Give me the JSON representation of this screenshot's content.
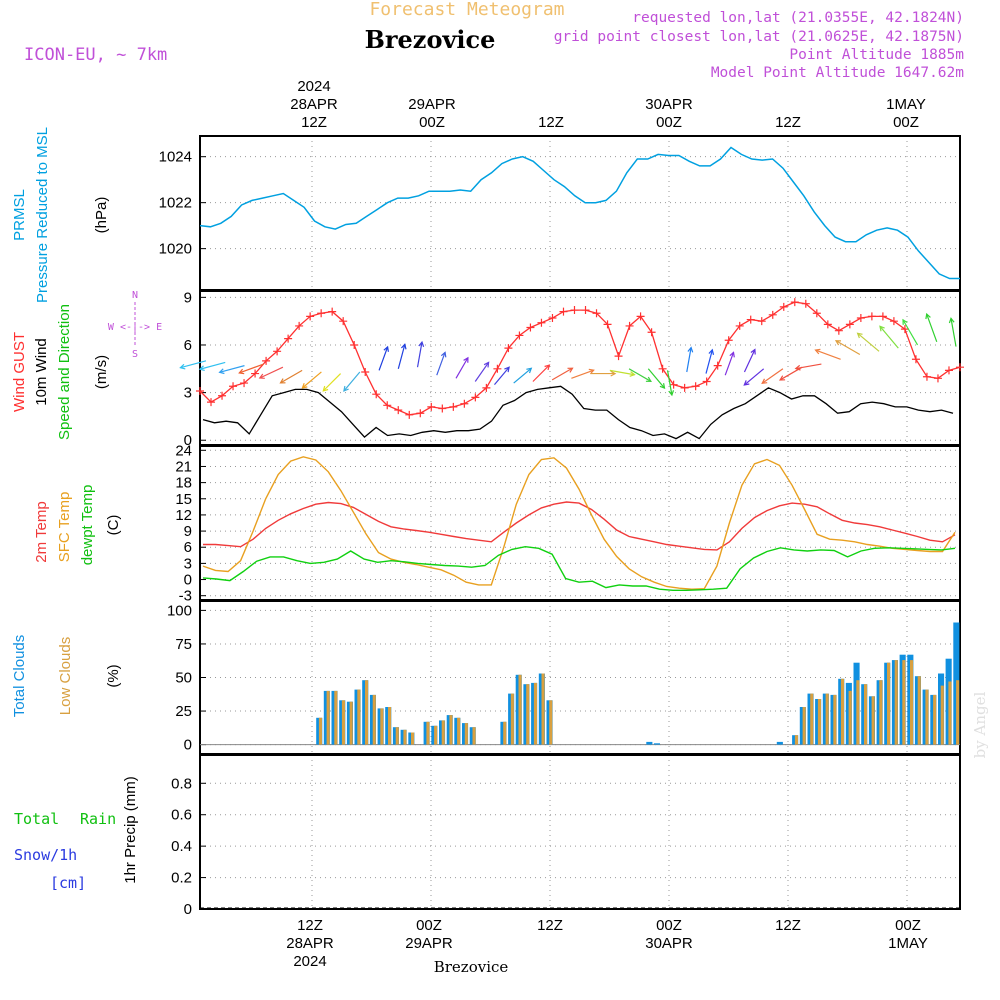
{
  "header": {
    "title": "Forecast Meteogram",
    "location": "Brezovice",
    "model": "ICON-EU, ~ 7km",
    "requested": "requested lon,lat (21.0355E, 42.1824N)",
    "gridpoint": "grid point closest lon,lat (21.0625E, 42.1875N)",
    "point_alt": "Point Altitude 1885m",
    "model_alt": "Model Point Altitude 1647.62m",
    "watermark": "by Angel",
    "footer": "Brezovice"
  },
  "top_axis": [
    {
      "l1": "2024",
      "l2": "28APR",
      "l3": "12Z"
    },
    {
      "l1": "",
      "l2": "29APR",
      "l3": "00Z"
    },
    {
      "l1": "",
      "l2": "",
      "l3": "12Z"
    },
    {
      "l1": "",
      "l2": "30APR",
      "l3": "00Z"
    },
    {
      "l1": "",
      "l2": "",
      "l3": "12Z"
    },
    {
      "l1": "",
      "l2": "1MAY",
      "l3": "00Z"
    }
  ],
  "bottom_axis": [
    {
      "l1": "12Z",
      "l2": "28APR",
      "l3": "2024"
    },
    {
      "l1": "00Z",
      "l2": "29APR",
      "l3": ""
    },
    {
      "l1": "12Z",
      "l2": "",
      "l3": ""
    },
    {
      "l1": "00Z",
      "l2": "30APR",
      "l3": ""
    },
    {
      "l1": "12Z",
      "l2": "",
      "l3": ""
    },
    {
      "l1": "00Z",
      "l2": "1MAY",
      "l3": ""
    }
  ],
  "panel_labels": {
    "prmsl": [
      "PRMSL",
      "Pressure Reduced to MSL",
      "(hPa)"
    ],
    "wind": [
      "Wind GUST",
      "10m Wind",
      "Speed and Direction",
      "(m/s)"
    ],
    "compass": [
      "N",
      "W <-|-> E",
      "S"
    ],
    "temp": [
      "2m Temp",
      "SFC Temp",
      "dewpt Temp",
      "(C)"
    ],
    "clouds": [
      "Total Clouds",
      "Low Clouds",
      "(%)"
    ],
    "precip": [
      "Total",
      "Rain",
      "Snow/1h",
      "[cm]",
      "1hr Precip (mm)"
    ]
  },
  "colors": {
    "pressure": "#00a0e0",
    "gust": "#ff3030",
    "wind": "#000000",
    "temp2m": "#f03a3a",
    "sfc": "#e8a020",
    "dew": "#10d010",
    "total_cloud": "#1090e0",
    "low_cloud": "#d8a040",
    "label_purple": "#c050d8",
    "title_orange": "#f0c070"
  },
  "chart_data": [
    {
      "type": "line",
      "name": "pressure",
      "title": "PRMSL",
      "ylabel": "(hPa)",
      "hours_start": 0,
      "hours_step": 1,
      "ylim": [
        1018.2,
        1024.9
      ],
      "yticks": [
        1020,
        1022,
        1024
      ],
      "values": [
        1021.0,
        1020.95,
        1021.1,
        1021.4,
        1021.9,
        1022.1,
        1022.2,
        1022.3,
        1022.4,
        1022.1,
        1021.8,
        1021.2,
        1020.95,
        1020.85,
        1021.05,
        1021.1,
        1021.4,
        1021.7,
        1022.0,
        1022.2,
        1022.2,
        1022.3,
        1022.5,
        1022.5,
        1022.5,
        1022.55,
        1022.5,
        1023.0,
        1023.3,
        1023.7,
        1023.9,
        1024.0,
        1023.8,
        1023.4,
        1023.0,
        1022.7,
        1022.3,
        1022.0,
        1022.0,
        1022.1,
        1022.5,
        1023.3,
        1023.9,
        1023.9,
        1024.1,
        1024.05,
        1024.05,
        1023.8,
        1023.6,
        1023.6,
        1023.9,
        1024.4,
        1024.1,
        1023.9,
        1023.85,
        1023.9,
        1023.5,
        1022.9,
        1022.3,
        1021.6,
        1021.0,
        1020.5,
        1020.3,
        1020.3,
        1020.6,
        1020.8,
        1020.9,
        1020.8,
        1020.5,
        1019.9,
        1019.4,
        1018.9,
        1018.7,
        1018.7
      ],
      "xlabels": [
        "12Z",
        "00Z",
        "12Z",
        "00Z",
        "12Z",
        "00Z"
      ]
    },
    {
      "type": "line",
      "name": "wind",
      "title": "Wind GUST / 10m Wind",
      "ylabel": "(m/s)",
      "ylim": [
        -0.3,
        9.4
      ],
      "yticks": [
        0,
        3,
        6,
        9
      ],
      "series": [
        {
          "name": "Wind GUST",
          "values": [
            3.1,
            2.4,
            2.8,
            3.4,
            3.6,
            4.2,
            5.0,
            5.6,
            6.4,
            7.2,
            7.8,
            8.0,
            8.1,
            7.5,
            6.0,
            4.3,
            2.9,
            2.2,
            1.9,
            1.6,
            1.7,
            2.1,
            2.0,
            2.1,
            2.3,
            2.7,
            3.3,
            4.5,
            5.8,
            6.6,
            7.1,
            7.4,
            7.7,
            8.1,
            8.2,
            8.2,
            8.0,
            7.3,
            5.3,
            7.2,
            7.8,
            6.8,
            4.5,
            3.5,
            3.3,
            3.4,
            3.7,
            4.7,
            6.3,
            7.2,
            7.6,
            7.5,
            7.9,
            8.4,
            8.7,
            8.6,
            8.0,
            7.3,
            6.9,
            7.3,
            7.7,
            7.8,
            7.8,
            7.5,
            7.0,
            5.1,
            4.0,
            3.9,
            4.4,
            4.6
          ]
        },
        {
          "name": "10m Wind",
          "values": [
            1.3,
            1.1,
            1.2,
            1.1,
            0.4,
            1.6,
            2.8,
            3.0,
            3.2,
            3.2,
            3.0,
            2.4,
            1.8,
            1.0,
            0.2,
            0.8,
            0.3,
            0.4,
            0.3,
            0.5,
            0.6,
            0.5,
            0.6,
            0.6,
            0.7,
            1.2,
            2.2,
            2.5,
            3.0,
            3.2,
            3.3,
            3.4,
            2.9,
            2.0,
            1.9,
            1.9,
            1.3,
            0.8,
            0.6,
            0.3,
            0.4,
            0.1,
            0.5,
            0.1,
            1.0,
            1.6,
            2.0,
            2.3,
            2.8,
            3.3,
            3.0,
            2.6,
            2.8,
            2.8,
            2.3,
            1.7,
            1.8,
            2.3,
            2.4,
            2.3,
            2.1,
            2.1,
            1.9,
            1.8,
            1.9,
            1.7
          ]
        }
      ],
      "arrows": {
        "positions_step": 2.2,
        "speeds": [
          5.0,
          4.9,
          4.7,
          4.8,
          4.6,
          4.4,
          4.3,
          4.2,
          4.3,
          4.4,
          4.5,
          4.6,
          4.1,
          3.9,
          3.7,
          3.5,
          3.6,
          3.7,
          3.8,
          3.9,
          4.2,
          4.4,
          4.5,
          4.5,
          4.4,
          4.3,
          4.2,
          4.1,
          4.3,
          4.5,
          4.5,
          4.6,
          4.8,
          5.1,
          5.4,
          5.6,
          5.8,
          6.0,
          6.2,
          5.9
        ],
        "dirs": [
          255,
          255,
          255,
          250,
          245,
          240,
          230,
          225,
          220,
          20,
          15,
          10,
          20,
          30,
          35,
          40,
          50,
          45,
          60,
          70,
          90,
          100,
          120,
          140,
          170,
          10,
          15,
          20,
          25,
          230,
          235,
          240,
          260,
          290,
          300,
          310,
          320,
          330,
          340,
          350
        ]
      }
    },
    {
      "type": "line",
      "name": "temperature",
      "title": "Temperatures",
      "ylabel": "(C)",
      "ylim": [
        -3.8,
        24.8
      ],
      "yticks": [
        -3,
        0,
        3,
        6,
        9,
        12,
        15,
        18,
        21,
        24
      ],
      "series": [
        {
          "name": "2m Temp",
          "values": [
            6.5,
            6.5,
            6.3,
            6.1,
            7.5,
            9.5,
            11,
            12.2,
            13.2,
            14,
            14.3,
            14.1,
            13.4,
            12.1,
            10.8,
            9.8,
            9.4,
            9.1,
            8.8,
            8.4,
            8.0,
            7.6,
            7.3,
            7.0,
            8.8,
            10.5,
            12,
            13.3,
            14,
            14.4,
            14.2,
            13,
            11.2,
            9.2,
            8,
            7.5,
            7.0,
            6.5,
            6.2,
            5.9,
            5.6,
            5.5,
            7.0,
            9.5,
            11.5,
            12.8,
            13.7,
            14.2,
            14.0,
            13.5,
            12.2,
            11,
            10.5,
            10.2,
            9.8,
            9.2,
            8.6,
            8.0,
            7.3,
            7.0,
            8.3
          ]
        },
        {
          "name": "SFC Temp",
          "values": [
            2.5,
            1.7,
            1.5,
            3.5,
            9,
            15,
            19.5,
            22,
            22.8,
            22.2,
            20,
            16.5,
            12.5,
            8.5,
            5,
            3.8,
            3.2,
            2.8,
            2.3,
            1.8,
            0.8,
            -0.5,
            -1.0,
            -1.0,
            6,
            14,
            19.5,
            22.3,
            22.6,
            20.7,
            16.8,
            12.0,
            7.5,
            4.3,
            2.0,
            0.5,
            -0.5,
            -1.3,
            -1.6,
            -1.8,
            -1.7,
            2.5,
            10.5,
            17.5,
            21.5,
            22.3,
            21.2,
            17.5,
            13,
            8.4,
            7.5,
            7.3,
            7.0,
            6.5,
            6.2,
            5.8,
            5.6,
            5.4,
            5.2,
            5.2,
            8.8
          ]
        },
        {
          "name": "dewpt Temp",
          "values": [
            0.3,
            0.1,
            -0.2,
            1.5,
            3.4,
            4.2,
            4.2,
            3.5,
            3.0,
            3.2,
            3.8,
            5.3,
            3.8,
            3.2,
            3.5,
            3.3,
            3.0,
            2.8,
            2.6,
            2.5,
            2.3,
            2.6,
            4.5,
            5.6,
            6.1,
            5.8,
            4.7,
            0.2,
            -0.5,
            -0.3,
            -1.5,
            -1.0,
            -1.2,
            -1.2,
            -1.8,
            -2.0,
            -2.0,
            -1.9,
            -1.8,
            -1.6,
            2.0,
            4.0,
            5.2,
            5.9,
            5.5,
            5.3,
            5.5,
            5.4,
            4.2,
            5.3,
            5.8,
            5.9,
            5.8,
            5.7,
            5.6,
            5.5,
            5.8
          ]
        }
      ]
    },
    {
      "type": "bar",
      "name": "clouds",
      "title": "Clouds",
      "ylabel": "(%)",
      "ylim": [
        -7,
        107
      ],
      "yticks": [
        0,
        25,
        50,
        75,
        100
      ],
      "series": [
        {
          "name": "Total Clouds",
          "values": [
            0,
            0,
            0,
            0,
            0,
            0,
            0,
            0,
            0,
            0,
            0,
            0,
            0,
            0,
            0,
            20,
            40,
            40,
            33,
            32,
            41,
            48,
            37,
            27,
            28,
            13,
            11,
            9,
            0,
            17,
            14,
            18,
            22,
            20,
            16,
            13,
            0,
            0,
            0,
            17,
            38,
            52,
            45,
            46,
            53,
            33,
            0,
            0,
            0,
            0,
            0,
            0,
            0,
            0,
            0,
            0,
            0,
            0,
            2,
            1,
            0,
            0,
            0,
            0,
            0,
            0,
            0,
            0,
            0,
            0,
            0,
            0,
            0,
            0,
            0,
            2,
            0,
            7,
            28,
            38,
            34,
            38,
            37,
            49,
            46,
            61,
            45,
            36,
            48,
            61,
            63,
            67,
            67,
            51,
            41,
            37,
            53,
            64,
            91
          ]
        },
        {
          "name": "Low Clouds",
          "values": [
            0,
            0,
            0,
            0,
            0,
            0,
            0,
            0,
            0,
            0,
            0,
            0,
            0,
            0,
            0,
            20,
            40,
            40,
            33,
            32,
            41,
            48,
            37,
            27,
            28,
            13,
            11,
            9,
            0,
            17,
            14,
            18,
            22,
            20,
            16,
            13,
            0,
            0,
            0,
            17,
            38,
            52,
            45,
            46,
            53,
            33,
            0,
            0,
            0,
            0,
            0,
            0,
            0,
            0,
            0,
            0,
            0,
            0,
            0,
            0,
            0,
            0,
            0,
            0,
            0,
            0,
            0,
            0,
            0,
            0,
            0,
            0,
            0,
            0,
            0,
            0,
            0,
            7,
            28,
            38,
            34,
            38,
            37,
            49,
            40,
            48,
            45,
            36,
            48,
            61,
            63,
            63,
            63,
            51,
            41,
            37,
            44,
            47,
            48
          ]
        }
      ]
    },
    {
      "type": "bar",
      "name": "precip",
      "title": "1hr Precip",
      "ylabel": "1hr Precip (mm)",
      "ylim": [
        0,
        0.98
      ],
      "yticks": [
        0,
        0.2,
        0.4,
        0.6,
        0.8
      ],
      "series": [
        {
          "name": "Total Rain",
          "values": []
        },
        {
          "name": "Snow/1h",
          "values": []
        }
      ]
    }
  ]
}
